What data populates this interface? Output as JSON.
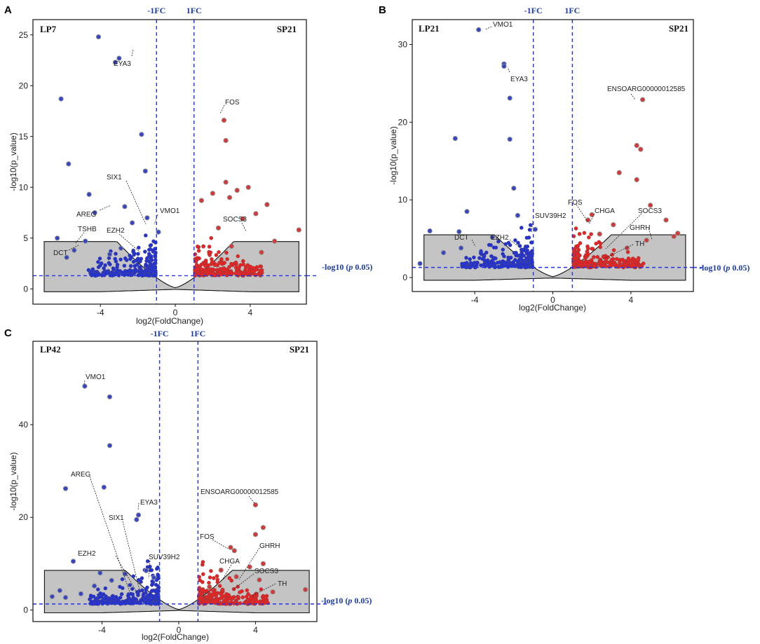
{
  "chart_data": [
    {
      "type": "scatter",
      "panel_label": "A",
      "left_group": "LP7",
      "right_group": "SP21",
      "xlabel": "log2(FoldChange)",
      "ylabel": "-log10(p_value)",
      "xlim": [
        -7.6,
        7.0
      ],
      "ylim": [
        -1.5,
        26.5
      ],
      "x_ticks": [
        -4,
        0,
        4
      ],
      "y_ticks": [
        0,
        5,
        10,
        15,
        20,
        25
      ],
      "fc_lines": {
        "left": -1,
        "right": 1,
        "left_label": "-1FC",
        "right_label": "1FC"
      },
      "p_threshold": {
        "value": 1.3,
        "label_prefix": "-log10 (",
        "label_italic": "p",
        "label_suffix": " 0.05)"
      },
      "points": [
        [
          -4.1,
          24.8,
          "down"
        ],
        [
          -3.0,
          22.7,
          "down"
        ],
        [
          -3.2,
          22.3,
          "down"
        ],
        [
          -6.1,
          18.7,
          "down"
        ],
        [
          -1.8,
          15.2,
          "down"
        ],
        [
          -5.7,
          12.3,
          "down"
        ],
        [
          -1.6,
          11.6,
          "down"
        ],
        [
          -4.6,
          9.3,
          "down"
        ],
        [
          -2.7,
          8.1,
          "down"
        ],
        [
          -1.5,
          7.0,
          "down"
        ],
        [
          -4.3,
          7.5,
          "down"
        ],
        [
          -2.3,
          6.5,
          "down"
        ],
        [
          -6.3,
          5.0,
          "down"
        ],
        [
          -4.8,
          4.7,
          "down"
        ],
        [
          -2.9,
          4.0,
          "down"
        ],
        [
          -0.9,
          5.6,
          "down"
        ],
        [
          -5.4,
          3.8,
          "down"
        ],
        [
          -5.8,
          3.1,
          "down"
        ],
        [
          -3.5,
          3.4,
          "down"
        ],
        [
          2.6,
          16.6,
          "up"
        ],
        [
          2.7,
          14.6,
          "up"
        ],
        [
          2.7,
          10.5,
          "up"
        ],
        [
          3.9,
          10.0,
          "up"
        ],
        [
          3.3,
          9.7,
          "up"
        ],
        [
          2.0,
          9.4,
          "up"
        ],
        [
          2.9,
          9.0,
          "up"
        ],
        [
          1.4,
          8.7,
          "up"
        ],
        [
          4.9,
          8.3,
          "up"
        ],
        [
          4.3,
          7.4,
          "up"
        ],
        [
          3.6,
          6.9,
          "up"
        ],
        [
          5.3,
          4.7,
          "up"
        ],
        [
          6.6,
          5.8,
          "up"
        ],
        [
          2.3,
          6.0,
          "up"
        ],
        [
          3.0,
          4.2,
          "up"
        ],
        [
          4.6,
          3.6,
          "up"
        ]
      ],
      "labels": [
        {
          "gene": "EYA3",
          "x": -3.1,
          "y": 22.3
        },
        {
          "gene": "FOS",
          "x": 2.6,
          "y": 16.6
        },
        {
          "gene": "SIX1",
          "x": -1.6,
          "y": 5.6
        },
        {
          "gene": "AREG",
          "x": -4.6,
          "y": 7.2
        },
        {
          "gene": "VMO1",
          "x": -0.9,
          "y": 5.6
        },
        {
          "gene": "SOCS3",
          "x": 3.9,
          "y": 4.9
        },
        {
          "gene": "TSHB",
          "x": -5.4,
          "y": 3.8
        },
        {
          "gene": "EZH2",
          "x": -2.9,
          "y": 4.0
        },
        {
          "gene": "DCT",
          "x": -5.8,
          "y": 3.1
        }
      ]
    },
    {
      "type": "scatter",
      "panel_label": "B",
      "left_group": "LP21",
      "right_group": "SP21",
      "xlabel": "log2(FoldChange)",
      "ylabel": "-log10(p_value)",
      "xlim": [
        -7.2,
        7.2
      ],
      "ylim": [
        -1.8,
        33.2
      ],
      "x_ticks": [
        -4,
        0,
        4
      ],
      "y_ticks": [
        0,
        10,
        20,
        30
      ],
      "fc_lines": {
        "left": -1,
        "right": 1,
        "left_label": "-1FC",
        "right_label": "1FC"
      },
      "p_threshold": {
        "value": 1.3,
        "label_prefix": "-log10 (",
        "label_italic": "p",
        "label_suffix": " 0.05)"
      },
      "points": [
        [
          -3.8,
          31.9,
          "down"
        ],
        [
          -2.5,
          27.5,
          "down"
        ],
        [
          -2.5,
          27.2,
          "down"
        ],
        [
          -2.2,
          23.1,
          "down"
        ],
        [
          -5.0,
          17.9,
          "down"
        ],
        [
          -2.2,
          17.8,
          "down"
        ],
        [
          -2.0,
          11.5,
          "down"
        ],
        [
          -4.4,
          8.5,
          "down"
        ],
        [
          -1.8,
          8.0,
          "down"
        ],
        [
          -0.9,
          6.2,
          "down"
        ],
        [
          -6.3,
          6.0,
          "down"
        ],
        [
          -4.8,
          5.9,
          "down"
        ],
        [
          -3.1,
          5.2,
          "down"
        ],
        [
          -4.7,
          3.8,
          "down"
        ],
        [
          -5.6,
          3.2,
          "down"
        ],
        [
          -6.8,
          1.8,
          "down"
        ],
        [
          4.6,
          22.9,
          "up"
        ],
        [
          4.3,
          17.0,
          "up"
        ],
        [
          4.5,
          16.5,
          "up"
        ],
        [
          3.4,
          13.5,
          "up"
        ],
        [
          4.3,
          12.6,
          "up"
        ],
        [
          5.0,
          9.3,
          "up"
        ],
        [
          2.0,
          8.1,
          "up"
        ],
        [
          1.8,
          7.4,
          "up"
        ],
        [
          3.1,
          6.8,
          "up"
        ],
        [
          5.8,
          7.4,
          "up"
        ],
        [
          6.4,
          5.7,
          "up"
        ],
        [
          6.2,
          5.3,
          "up"
        ],
        [
          4.8,
          4.8,
          "up"
        ],
        [
          2.4,
          5.6,
          "up"
        ],
        [
          3.8,
          3.8,
          "up"
        ]
      ],
      "labels": [
        {
          "gene": "VMO1",
          "x": -3.8,
          "y": 31.9
        },
        {
          "gene": "EYA3",
          "x": -2.5,
          "y": 27.2
        },
        {
          "gene": "ENSOARG00000012585",
          "x": 4.6,
          "y": 22.9
        },
        {
          "gene": "FOS",
          "x": 1.9,
          "y": 7.6
        },
        {
          "gene": "CHGA",
          "x": 2.3,
          "y": 7.0
        },
        {
          "gene": "SOCS3",
          "x": 3.3,
          "y": 5.5
        },
        {
          "gene": "SUV39H2",
          "x": -0.9,
          "y": 6.2
        },
        {
          "gene": "GHRH",
          "x": 5.7,
          "y": 5.1
        },
        {
          "gene": "DCT",
          "x": -4.8,
          "y": 5.5
        },
        {
          "gene": "EZH2",
          "x": -2.7,
          "y": 5.2
        },
        {
          "gene": "TH",
          "x": 3.0,
          "y": 3.5
        }
      ]
    },
    {
      "type": "scatter",
      "panel_label": "C",
      "left_group": "LP42",
      "right_group": "SP21",
      "xlabel": "log2(FoldChange)",
      "ylabel": "-log10(p_value)",
      "xlim": [
        -7.6,
        7.2
      ],
      "ylim": [
        -2.5,
        58.0
      ],
      "x_ticks": [
        -4,
        0,
        4
      ],
      "y_ticks": [
        0,
        20,
        40
      ],
      "fc_lines": {
        "left": -1,
        "right": 1,
        "left_label": "-1FC",
        "right_label": "1FC"
      },
      "p_threshold": {
        "value": 1.3,
        "label_prefix": "-log10 (",
        "label_italic": "p",
        "label_suffix": " 0.05)"
      },
      "points": [
        [
          -4.9,
          48.3,
          "down"
        ],
        [
          -3.6,
          46.0,
          "down"
        ],
        [
          -3.6,
          35.5,
          "down"
        ],
        [
          -5.9,
          26.2,
          "down"
        ],
        [
          -3.9,
          26.5,
          "down"
        ],
        [
          -2.1,
          20.5,
          "down"
        ],
        [
          -2.2,
          19.5,
          "down"
        ],
        [
          -5.5,
          10.5,
          "down"
        ],
        [
          -4.1,
          8.0,
          "down"
        ],
        [
          -1.7,
          8.5,
          "down"
        ],
        [
          -2.8,
          7.8,
          "down"
        ],
        [
          -1.3,
          7.0,
          "down"
        ],
        [
          -6.2,
          4.2,
          "down"
        ],
        [
          -5.1,
          3.5,
          "down"
        ],
        [
          -4.4,
          5.2,
          "down"
        ],
        [
          -3.5,
          6.4,
          "down"
        ],
        [
          -6.6,
          2.9,
          "down"
        ],
        [
          -5.9,
          2.7,
          "down"
        ],
        [
          4.0,
          22.7,
          "up"
        ],
        [
          4.4,
          17.8,
          "up"
        ],
        [
          4.0,
          16.3,
          "up"
        ],
        [
          2.7,
          13.5,
          "up"
        ],
        [
          2.9,
          12.8,
          "up"
        ],
        [
          4.4,
          10.0,
          "up"
        ],
        [
          3.7,
          9.3,
          "up"
        ],
        [
          2.2,
          8.6,
          "up"
        ],
        [
          3.0,
          7.2,
          "up"
        ],
        [
          4.2,
          6.5,
          "up"
        ],
        [
          6.6,
          4.4,
          "up"
        ],
        [
          4.9,
          3.9,
          "up"
        ],
        [
          1.6,
          5.0,
          "up"
        ]
      ],
      "labels": [
        {
          "gene": "VMO1",
          "x": -4.9,
          "y": 48.3
        },
        {
          "gene": "ENSOARG00000012585",
          "x": 4.0,
          "y": 22.7
        },
        {
          "gene": "AREG",
          "x": -2.7,
          "y": 4.0
        },
        {
          "gene": "EYA3",
          "x": -2.1,
          "y": 20.0
        },
        {
          "gene": "SIX1",
          "x": -2.4,
          "y": 4.0
        },
        {
          "gene": "FOS",
          "x": 2.9,
          "y": 13.0
        },
        {
          "gene": "GHRH",
          "x": 3.6,
          "y": 5.5
        },
        {
          "gene": "EZH2",
          "x": -2.6,
          "y": 4.0
        },
        {
          "gene": "SUV39H2",
          "x": -1.4,
          "y": 6.5
        },
        {
          "gene": "CHGA",
          "x": 2.7,
          "y": 5.5
        },
        {
          "gene": "SOCS3",
          "x": 3.4,
          "y": 4.0
        },
        {
          "gene": "TH",
          "x": 4.0,
          "y": 2.8
        }
      ]
    }
  ]
}
